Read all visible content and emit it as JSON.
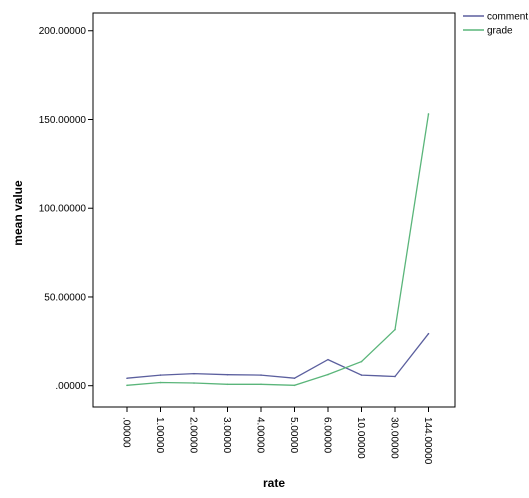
{
  "chart_data": {
    "type": "line",
    "title": "",
    "xlabel": "rate",
    "ylabel": "mean value",
    "categories": [
      ".00000",
      "1.00000",
      "2.00000",
      "3.00000",
      "4.00000",
      "5.00000",
      "6.00000",
      "10.00000",
      "30.00000",
      "144.00000"
    ],
    "y_ticks": [
      ".00000",
      "50.00000",
      "100.00000",
      "150.00000",
      "200.00000"
    ],
    "ylim": [
      -12,
      210
    ],
    "grid": false,
    "legend_position": "top-right",
    "series": [
      {
        "name": "comment",
        "color": "#5b5f9e",
        "values": [
          4.2,
          6.0,
          6.8,
          6.2,
          6.0,
          4.2,
          14.7,
          6.0,
          5.2,
          29.3
        ]
      },
      {
        "name": "grade",
        "color": "#5ab57a",
        "values": [
          0.2,
          1.8,
          1.5,
          0.8,
          0.8,
          0.2,
          6.3,
          13.6,
          31.6,
          153.1
        ]
      }
    ]
  }
}
